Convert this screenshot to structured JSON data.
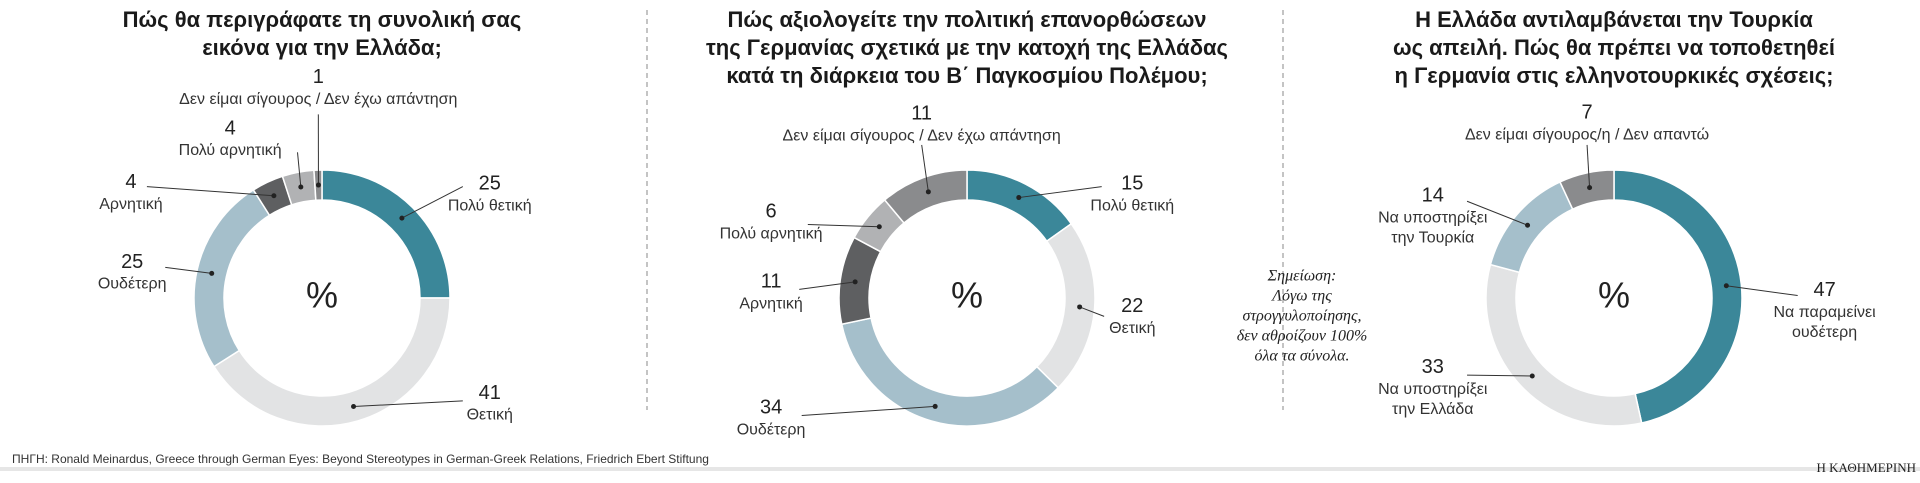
{
  "chart_data": [
    {
      "type": "donut",
      "title": [
        "Πώς θα περιγράφατε τη συνολική σας",
        "εικόνα για την Ελλάδα;"
      ],
      "center_label": "%",
      "categories": [
        [
          "Πολύ θετική"
        ],
        [
          "Θετική"
        ],
        [
          "Ουδέτερη"
        ],
        [
          "Αρνητική"
        ],
        [
          "Πολύ αρνητική"
        ],
        [
          "Δεν είμαι σίγουρος / Δεν έχω απάντηση"
        ]
      ],
      "values": [
        25,
        41,
        25,
        4,
        4,
        1
      ],
      "colors": [
        "#3b8799",
        "#e2e3e4",
        "#a5bfcb",
        "#5e5f61",
        "#b1b2b4",
        "#8a8b8d"
      ]
    },
    {
      "type": "donut",
      "title": [
        "Πώς αξιολογείτε την πολιτική επανορθώσεων",
        "της Γερμανίας σχετικά με την κατοχή της Ελλάδας",
        "κατά τη διάρκεια του Β΄ Παγκοσμίου Πολέμου;"
      ],
      "center_label": "%",
      "categories": [
        [
          "Πολύ θετική"
        ],
        [
          "Θετική"
        ],
        [
          "Ουδέτερη"
        ],
        [
          "Αρνητική"
        ],
        [
          "Πολύ αρνητική"
        ],
        [
          "Δεν είμαι σίγουρος / Δεν έχω απάντηση"
        ]
      ],
      "values": [
        15,
        22,
        34,
        11,
        6,
        11
      ],
      "colors": [
        "#3b8799",
        "#e2e3e4",
        "#a5bfcb",
        "#5e5f61",
        "#b1b2b4",
        "#8a8b8d"
      ]
    },
    {
      "type": "donut",
      "title": [
        "Η Ελλάδα αντιλαμβάνεται την Τουρκία",
        "ως απειλή. Πώς θα πρέπει να τοποθετηθεί",
        "η Γερμανία στις ελληνοτουρκικές σχέσεις;"
      ],
      "center_label": "%",
      "categories": [
        [
          "Να παραμείνει",
          "ουδέτερη"
        ],
        [
          "Να υποστηρίξει",
          "την Ελλάδα"
        ],
        [
          "Να υποστηρίξει",
          "την Τουρκία"
        ],
        [
          "Δεν είμαι σίγουρος/η / Δεν απαντώ"
        ]
      ],
      "values": [
        47,
        33,
        14,
        7
      ],
      "colors": [
        "#3b8799",
        "#e2e3e4",
        "#a5bfcb",
        "#8a8b8d"
      ]
    }
  ],
  "note": [
    "Σημείωση:",
    "Λόγω της",
    "στρογγυλοποίησης,",
    "δεν αθροίζουν 100%",
    "όλα τα σύνολα."
  ],
  "source": "ΠΗΓΗ: Ronald Meinardus, Greece through German Eyes: Beyond Stereotypes in German-Greek Relations, Friedrich Ebert Stiftung",
  "logo": "Η ΚΑΘΗΜΕΡΙΝΗ"
}
